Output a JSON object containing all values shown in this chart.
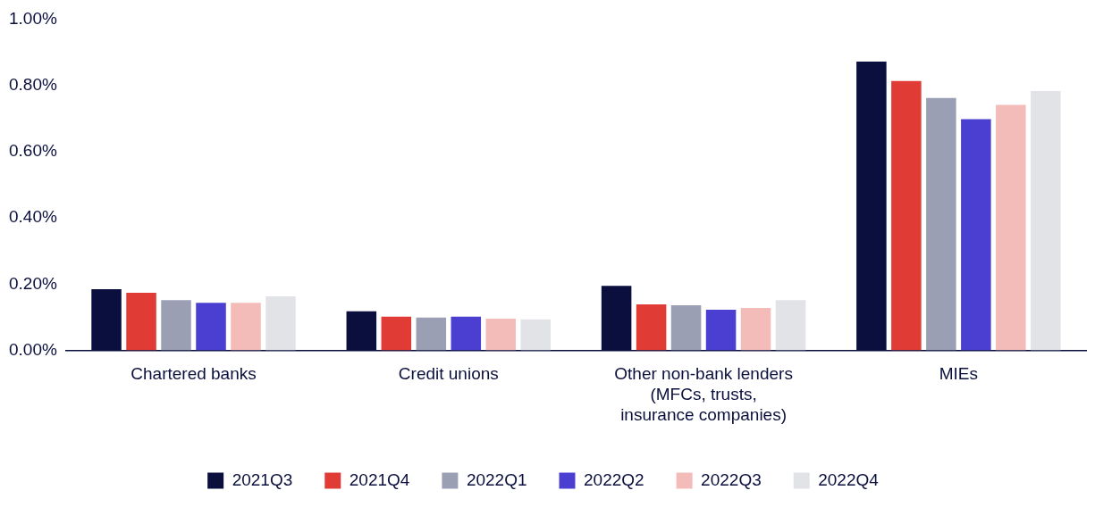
{
  "chart_data": {
    "type": "bar",
    "categories": [
      "Chartered banks",
      "Credit unions",
      "Other non-bank lenders (MFCs, trusts, insurance companies)",
      "MIEs"
    ],
    "series": [
      {
        "name": "2021Q3",
        "color": "#0a0f3d",
        "values": [
          0.185,
          0.118,
          0.195,
          0.872
        ]
      },
      {
        "name": "2021Q4",
        "color": "#e03c35",
        "values": [
          0.174,
          0.102,
          0.139,
          0.813
        ]
      },
      {
        "name": "2022Q1",
        "color": "#9a9fb4",
        "values": [
          0.152,
          0.099,
          0.136,
          0.762
        ]
      },
      {
        "name": "2022Q2",
        "color": "#4a3fd1",
        "values": [
          0.144,
          0.102,
          0.123,
          0.698
        ]
      },
      {
        "name": "2022Q3",
        "color": "#f4bcb8",
        "values": [
          0.144,
          0.096,
          0.128,
          0.741
        ]
      },
      {
        "name": "2022Q4",
        "color": "#e1e3e7",
        "values": [
          0.163,
          0.094,
          0.152,
          0.783
        ]
      }
    ],
    "ylim": [
      0,
      1
    ],
    "yticks": [
      {
        "value": 0,
        "label": "0.00%"
      },
      {
        "value": 0.2,
        "label": "0.20%"
      },
      {
        "value": 0.4,
        "label": "0.40%"
      },
      {
        "value": 0.6,
        "label": "0.60%"
      },
      {
        "value": 0.8,
        "label": "0.80%"
      },
      {
        "value": 1,
        "label": "1.00%"
      }
    ],
    "grid": false,
    "legend": "bottom"
  }
}
